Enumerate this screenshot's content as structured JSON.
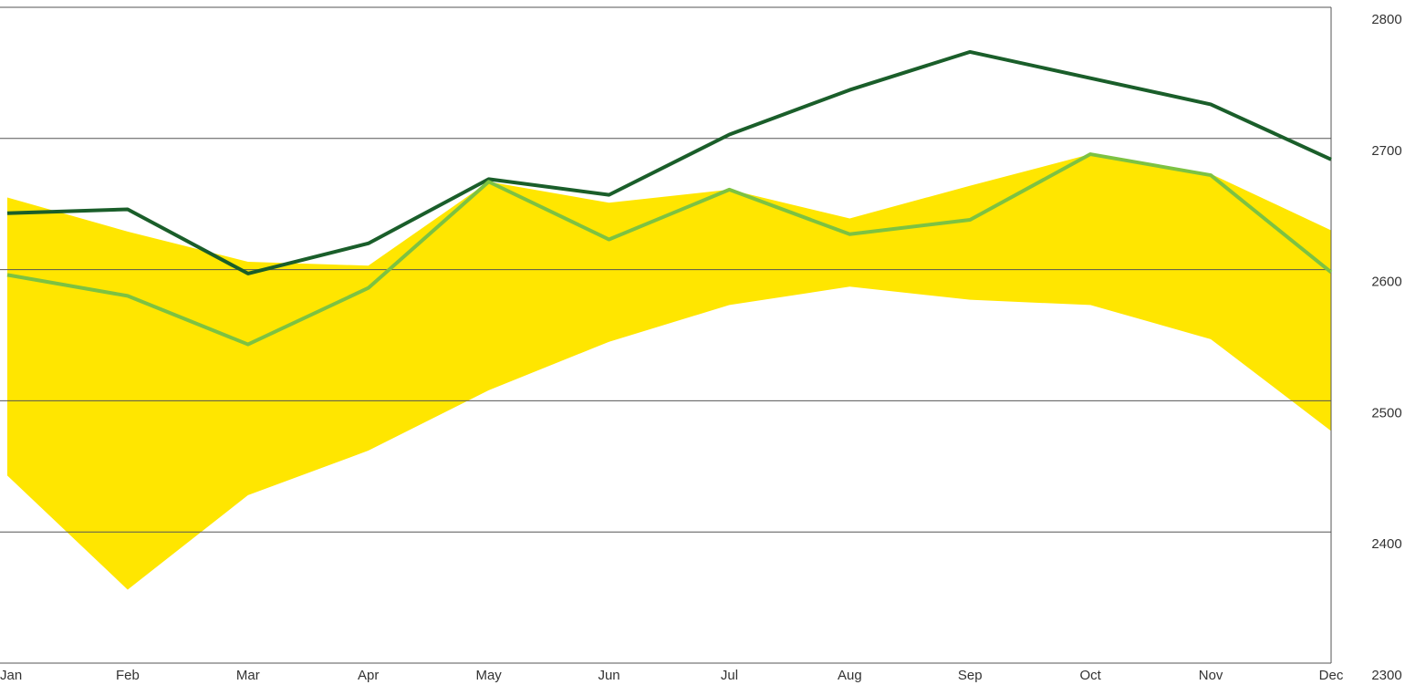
{
  "chart_data": {
    "type": "line",
    "categories": [
      "Jan",
      "Feb",
      "Mar",
      "Apr",
      "May",
      "Jun",
      "Jul",
      "Aug",
      "Sep",
      "Oct",
      "Nov",
      "Dec"
    ],
    "band": {
      "color": "#ffe600",
      "high": [
        2655,
        2629,
        2606,
        2603,
        2667,
        2651,
        2661,
        2639,
        2664,
        2688,
        2673,
        2630
      ],
      "low": [
        2443,
        2356,
        2428,
        2462,
        2508,
        2545,
        2573,
        2587,
        2577,
        2573,
        2547,
        2477
      ]
    },
    "series": [
      {
        "color": "#1a5e2a",
        "values": [
          2643,
          2646,
          2597,
          2620,
          2669,
          2657,
          2703,
          2737,
          2766,
          2746,
          2726,
          2684
        ]
      },
      {
        "color": "#7dc242",
        "values": [
          2596,
          2580,
          2543,
          2586,
          2667,
          2623,
          2661,
          2627,
          2638,
          2688,
          2672,
          2598
        ]
      }
    ],
    "ylim": [
      2300,
      2800
    ],
    "yticks": [
      2300,
      2400,
      2500,
      2600,
      2700,
      2800
    ],
    "grid": true
  }
}
